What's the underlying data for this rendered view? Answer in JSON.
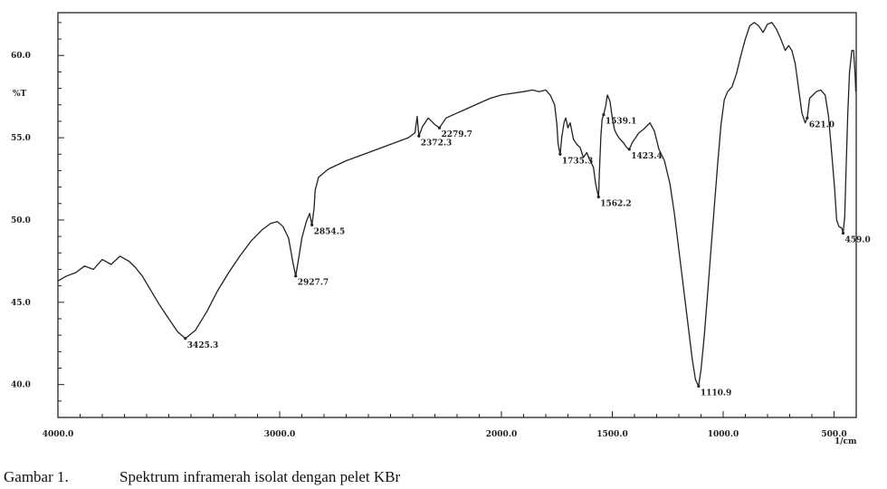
{
  "chart_data": {
    "type": "line",
    "ylabel": "%T",
    "xlabel_unit": "1/cm",
    "xlim": [
      4000,
      400
    ],
    "ylim": [
      38.0,
      62.6
    ],
    "x_reversed": true,
    "grid": false,
    "x_ticks": [
      {
        "value": 4000,
        "label": "4000.0"
      },
      {
        "value": 3000,
        "label": "3000.0"
      },
      {
        "value": 2000,
        "label": "2000.0"
      },
      {
        "value": 1500,
        "label": "1500.0"
      },
      {
        "value": 1000,
        "label": "1000.0"
      },
      {
        "value": 500,
        "label": "500.0"
      }
    ],
    "y_ticks": [
      {
        "value": 60,
        "label": "60.0"
      },
      {
        "value": 55,
        "label": "55.0"
      },
      {
        "value": 50,
        "label": "50.0"
      },
      {
        "value": 45,
        "label": "45.0"
      },
      {
        "value": 40,
        "label": "40.0"
      }
    ],
    "series": [
      {
        "color": "#222222",
        "points": [
          [
            4000,
            46.3
          ],
          [
            3960,
            46.6
          ],
          [
            3920,
            46.8
          ],
          [
            3880,
            47.2
          ],
          [
            3840,
            47.0
          ],
          [
            3800,
            47.6
          ],
          [
            3760,
            47.3
          ],
          [
            3720,
            47.8
          ],
          [
            3680,
            47.5
          ],
          [
            3650,
            47.1
          ],
          [
            3620,
            46.6
          ],
          [
            3580,
            45.7
          ],
          [
            3540,
            44.8
          ],
          [
            3500,
            44.0
          ],
          [
            3460,
            43.2
          ],
          [
            3425.3,
            42.8
          ],
          [
            3380,
            43.3
          ],
          [
            3330,
            44.4
          ],
          [
            3280,
            45.7
          ],
          [
            3230,
            46.8
          ],
          [
            3180,
            47.8
          ],
          [
            3130,
            48.7
          ],
          [
            3080,
            49.4
          ],
          [
            3040,
            49.8
          ],
          [
            3010,
            49.9
          ],
          [
            2985,
            49.6
          ],
          [
            2960,
            48.9
          ],
          [
            2940,
            47.4
          ],
          [
            2927.7,
            46.6
          ],
          [
            2915,
            47.6
          ],
          [
            2900,
            48.9
          ],
          [
            2880,
            49.9
          ],
          [
            2865,
            50.4
          ],
          [
            2854.5,
            49.7
          ],
          [
            2845,
            50.7
          ],
          [
            2840,
            51.8
          ],
          [
            2825,
            52.6
          ],
          [
            2780,
            53.1
          ],
          [
            2700,
            53.6
          ],
          [
            2600,
            54.1
          ],
          [
            2500,
            54.6
          ],
          [
            2420,
            55.0
          ],
          [
            2390,
            55.3
          ],
          [
            2380,
            56.3
          ],
          [
            2372.3,
            55.1
          ],
          [
            2355,
            55.7
          ],
          [
            2330,
            56.2
          ],
          [
            2300,
            55.8
          ],
          [
            2279.7,
            55.6
          ],
          [
            2250,
            56.2
          ],
          [
            2200,
            56.5
          ],
          [
            2150,
            56.8
          ],
          [
            2100,
            57.1
          ],
          [
            2050,
            57.4
          ],
          [
            2000,
            57.6
          ],
          [
            1950,
            57.7
          ],
          [
            1900,
            57.8
          ],
          [
            1860,
            57.9
          ],
          [
            1830,
            57.8
          ],
          [
            1800,
            57.9
          ],
          [
            1780,
            57.6
          ],
          [
            1760,
            57.0
          ],
          [
            1750,
            55.8
          ],
          [
            1745,
            54.7
          ],
          [
            1740,
            54.3
          ],
          [
            1735.3,
            54.0
          ],
          [
            1728,
            55.0
          ],
          [
            1718,
            55.9
          ],
          [
            1710,
            56.2
          ],
          [
            1700,
            55.6
          ],
          [
            1690,
            55.9
          ],
          [
            1675,
            54.9
          ],
          [
            1660,
            54.6
          ],
          [
            1645,
            54.4
          ],
          [
            1630,
            53.8
          ],
          [
            1615,
            54.1
          ],
          [
            1600,
            53.6
          ],
          [
            1585,
            53.2
          ],
          [
            1575,
            52.2
          ],
          [
            1562.2,
            51.4
          ],
          [
            1558,
            53.0
          ],
          [
            1552,
            55.0
          ],
          [
            1546,
            56.1
          ],
          [
            1539.1,
            56.4
          ],
          [
            1530,
            56.9
          ],
          [
            1522,
            57.6
          ],
          [
            1510,
            57.2
          ],
          [
            1500,
            56.2
          ],
          [
            1490,
            55.5
          ],
          [
            1480,
            55.2
          ],
          [
            1465,
            54.9
          ],
          [
            1450,
            54.7
          ],
          [
            1435,
            54.4
          ],
          [
            1423.4,
            54.3
          ],
          [
            1410,
            54.7
          ],
          [
            1395,
            55.0
          ],
          [
            1380,
            55.3
          ],
          [
            1360,
            55.5
          ],
          [
            1330,
            55.9
          ],
          [
            1310,
            55.4
          ],
          [
            1290,
            54.3
          ],
          [
            1265,
            53.6
          ],
          [
            1240,
            52.2
          ],
          [
            1220,
            50.4
          ],
          [
            1200,
            48.2
          ],
          [
            1180,
            46.0
          ],
          [
            1160,
            43.8
          ],
          [
            1140,
            41.6
          ],
          [
            1125,
            40.3
          ],
          [
            1110.9,
            39.9
          ],
          [
            1100,
            40.9
          ],
          [
            1085,
            43.0
          ],
          [
            1070,
            45.6
          ],
          [
            1055,
            48.2
          ],
          [
            1040,
            50.8
          ],
          [
            1025,
            53.4
          ],
          [
            1010,
            55.8
          ],
          [
            995,
            57.3
          ],
          [
            980,
            57.8
          ],
          [
            960,
            58.1
          ],
          [
            940,
            58.9
          ],
          [
            920,
            60.0
          ],
          [
            900,
            61.0
          ],
          [
            880,
            61.8
          ],
          [
            860,
            62.0
          ],
          [
            840,
            61.8
          ],
          [
            820,
            61.4
          ],
          [
            800,
            61.9
          ],
          [
            780,
            62.0
          ],
          [
            760,
            61.6
          ],
          [
            740,
            61.0
          ],
          [
            720,
            60.3
          ],
          [
            705,
            60.6
          ],
          [
            690,
            60.3
          ],
          [
            675,
            59.5
          ],
          [
            660,
            58.0
          ],
          [
            645,
            56.5
          ],
          [
            630,
            55.9
          ],
          [
            621.0,
            56.2
          ],
          [
            610,
            57.4
          ],
          [
            595,
            57.6
          ],
          [
            580,
            57.8
          ],
          [
            560,
            57.9
          ],
          [
            540,
            57.6
          ],
          [
            525,
            56.3
          ],
          [
            510,
            54.0
          ],
          [
            498,
            52.0
          ],
          [
            488,
            50.0
          ],
          [
            478,
            49.6
          ],
          [
            465,
            49.5
          ],
          [
            459.0,
            49.2
          ],
          [
            452,
            50.2
          ],
          [
            445,
            53.5
          ],
          [
            438,
            56.5
          ],
          [
            430,
            59.0
          ],
          [
            420,
            60.3
          ],
          [
            412,
            60.3
          ],
          [
            405,
            58.8
          ],
          [
            402,
            57.8
          ]
        ]
      }
    ],
    "peaks": [
      {
        "x": 3425.3,
        "y": 42.8,
        "label": "3425.3"
      },
      {
        "x": 2927.7,
        "y": 46.6,
        "label": "2927.7"
      },
      {
        "x": 2854.5,
        "y": 49.7,
        "label": "2854.5"
      },
      {
        "x": 2372.3,
        "y": 55.1,
        "label": "2372.3"
      },
      {
        "x": 2279.7,
        "y": 55.6,
        "label": "2279.7"
      },
      {
        "x": 1735.3,
        "y": 54.0,
        "label": "1735.3"
      },
      {
        "x": 1562.2,
        "y": 51.4,
        "label": "1562.2"
      },
      {
        "x": 1539.1,
        "y": 56.4,
        "label": "1539.1"
      },
      {
        "x": 1423.4,
        "y": 54.3,
        "label": "1423.4"
      },
      {
        "x": 1110.9,
        "y": 39.9,
        "label": "1110.9"
      },
      {
        "x": 621.0,
        "y": 56.2,
        "label": "621.0"
      },
      {
        "x": 459.0,
        "y": 49.2,
        "label": "459.0"
      }
    ]
  },
  "caption": {
    "number": "Gambar 1.",
    "text": "Spektrum inframerah isolat dengan pelet KBr"
  }
}
